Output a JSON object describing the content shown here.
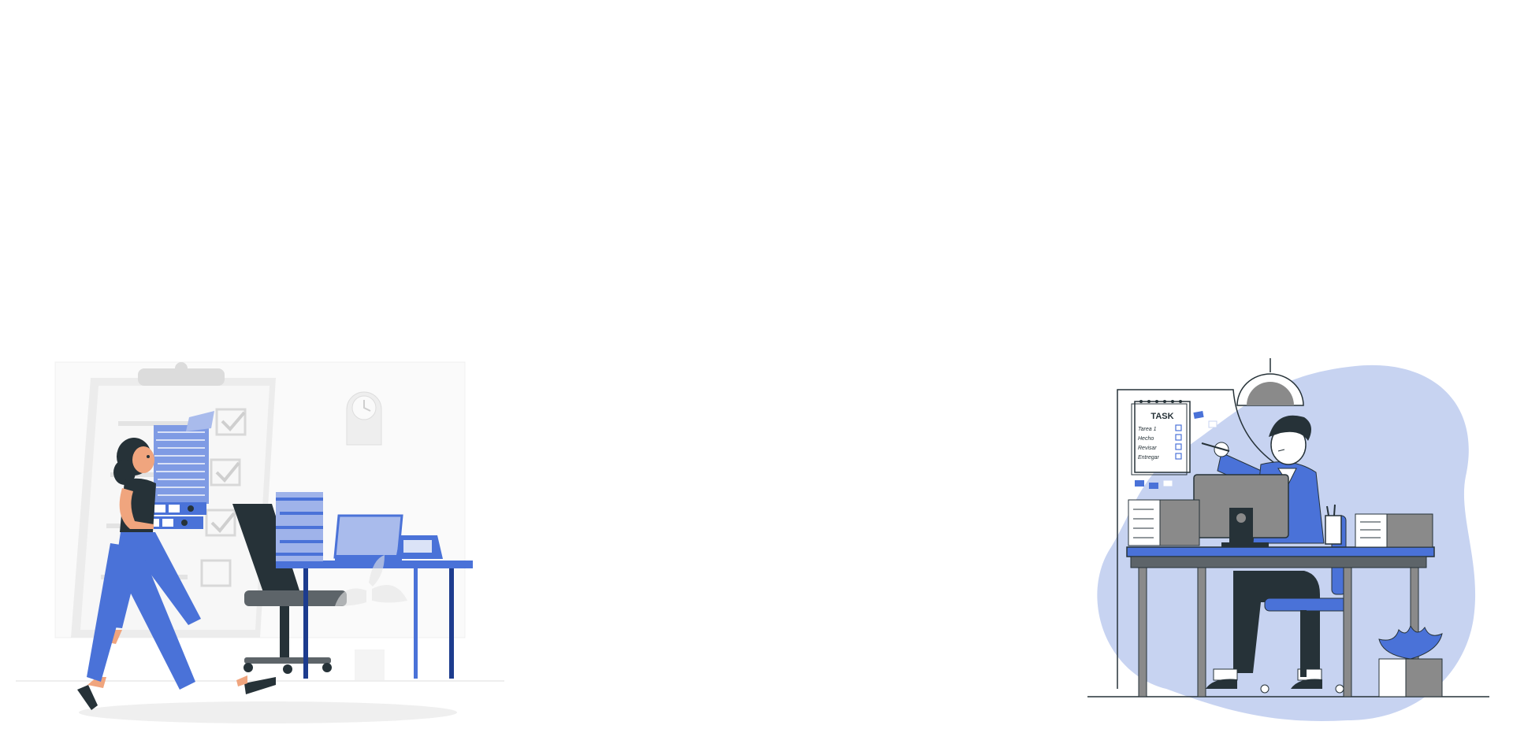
{
  "illustrations": {
    "left": {
      "icon": "woman-carrying-files-illustration"
    },
    "right": {
      "icon": "man-at-desk-checking-tasks-illustration",
      "calendar_title": "TASK",
      "task_items": [
        "Tarea 1",
        "Hecho",
        "Revisar",
        "Entregar"
      ]
    }
  },
  "colors": {
    "accent": "#4a72d8",
    "accent_light": "#c7d3f1",
    "dark": "#263238",
    "grey": "#8a8a8a",
    "faint": "#f2f2f2"
  }
}
